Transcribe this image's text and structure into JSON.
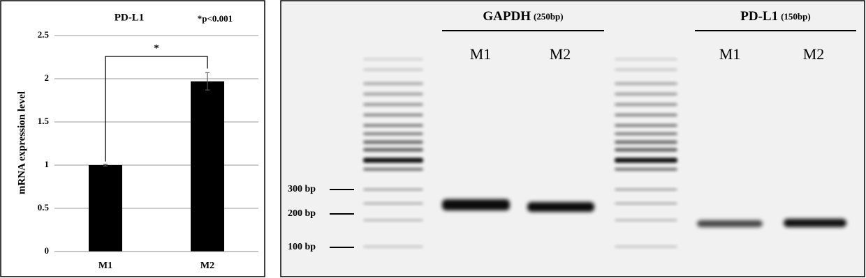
{
  "chart_data": {
    "type": "bar",
    "title": "PD-L1",
    "annotation": "*p<0.001",
    "ylabel": "mRNA expression level",
    "categories": [
      "M1",
      "M2"
    ],
    "values": [
      1,
      1.97
    ],
    "errors": [
      0.01,
      0.1
    ],
    "color": "#000000",
    "ylim": [
      0,
      2.5
    ],
    "yticks": [
      0,
      0.5,
      1,
      1.5,
      2,
      2.5
    ],
    "grid": true,
    "significance": "*"
  },
  "gel": {
    "groups": [
      {
        "name": "GAPDH",
        "size": "(250bp)",
        "lanes": [
          "M1",
          "M2"
        ]
      },
      {
        "name": "PD-L1",
        "size": "(150bp)",
        "lanes": [
          "M1",
          "M2"
        ]
      }
    ],
    "markers": [
      "300 bp",
      "200 bp",
      "100 bp"
    ]
  }
}
